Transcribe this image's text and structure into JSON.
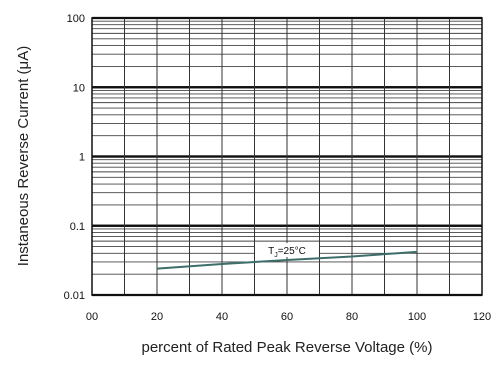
{
  "chart_data": {
    "type": "line",
    "xlabel": "percent of Rated  Peak Reverse Voltage (%)",
    "ylabel": "Instaneous Reverse Current  (μA)",
    "x_ticks": [
      "00",
      "20",
      "40",
      "60",
      "80",
      "100",
      "120"
    ],
    "y_ticks": [
      "0.01",
      "0.1",
      "1",
      "10",
      "100"
    ],
    "xlim": [
      0,
      120
    ],
    "ylim": [
      0.01,
      100
    ],
    "y_scale": "log",
    "grid": true,
    "series": [
      {
        "x": [
          20,
          40,
          60,
          80,
          100
        ],
        "y": [
          0.024,
          0.028,
          0.032,
          0.036,
          0.042
        ],
        "color": "#3d6e6a"
      }
    ],
    "annotations": [
      {
        "text_main": "T",
        "text_sub": "J",
        "text_rest": "=25°C",
        "x": 60,
        "y": 0.032
      }
    ]
  }
}
